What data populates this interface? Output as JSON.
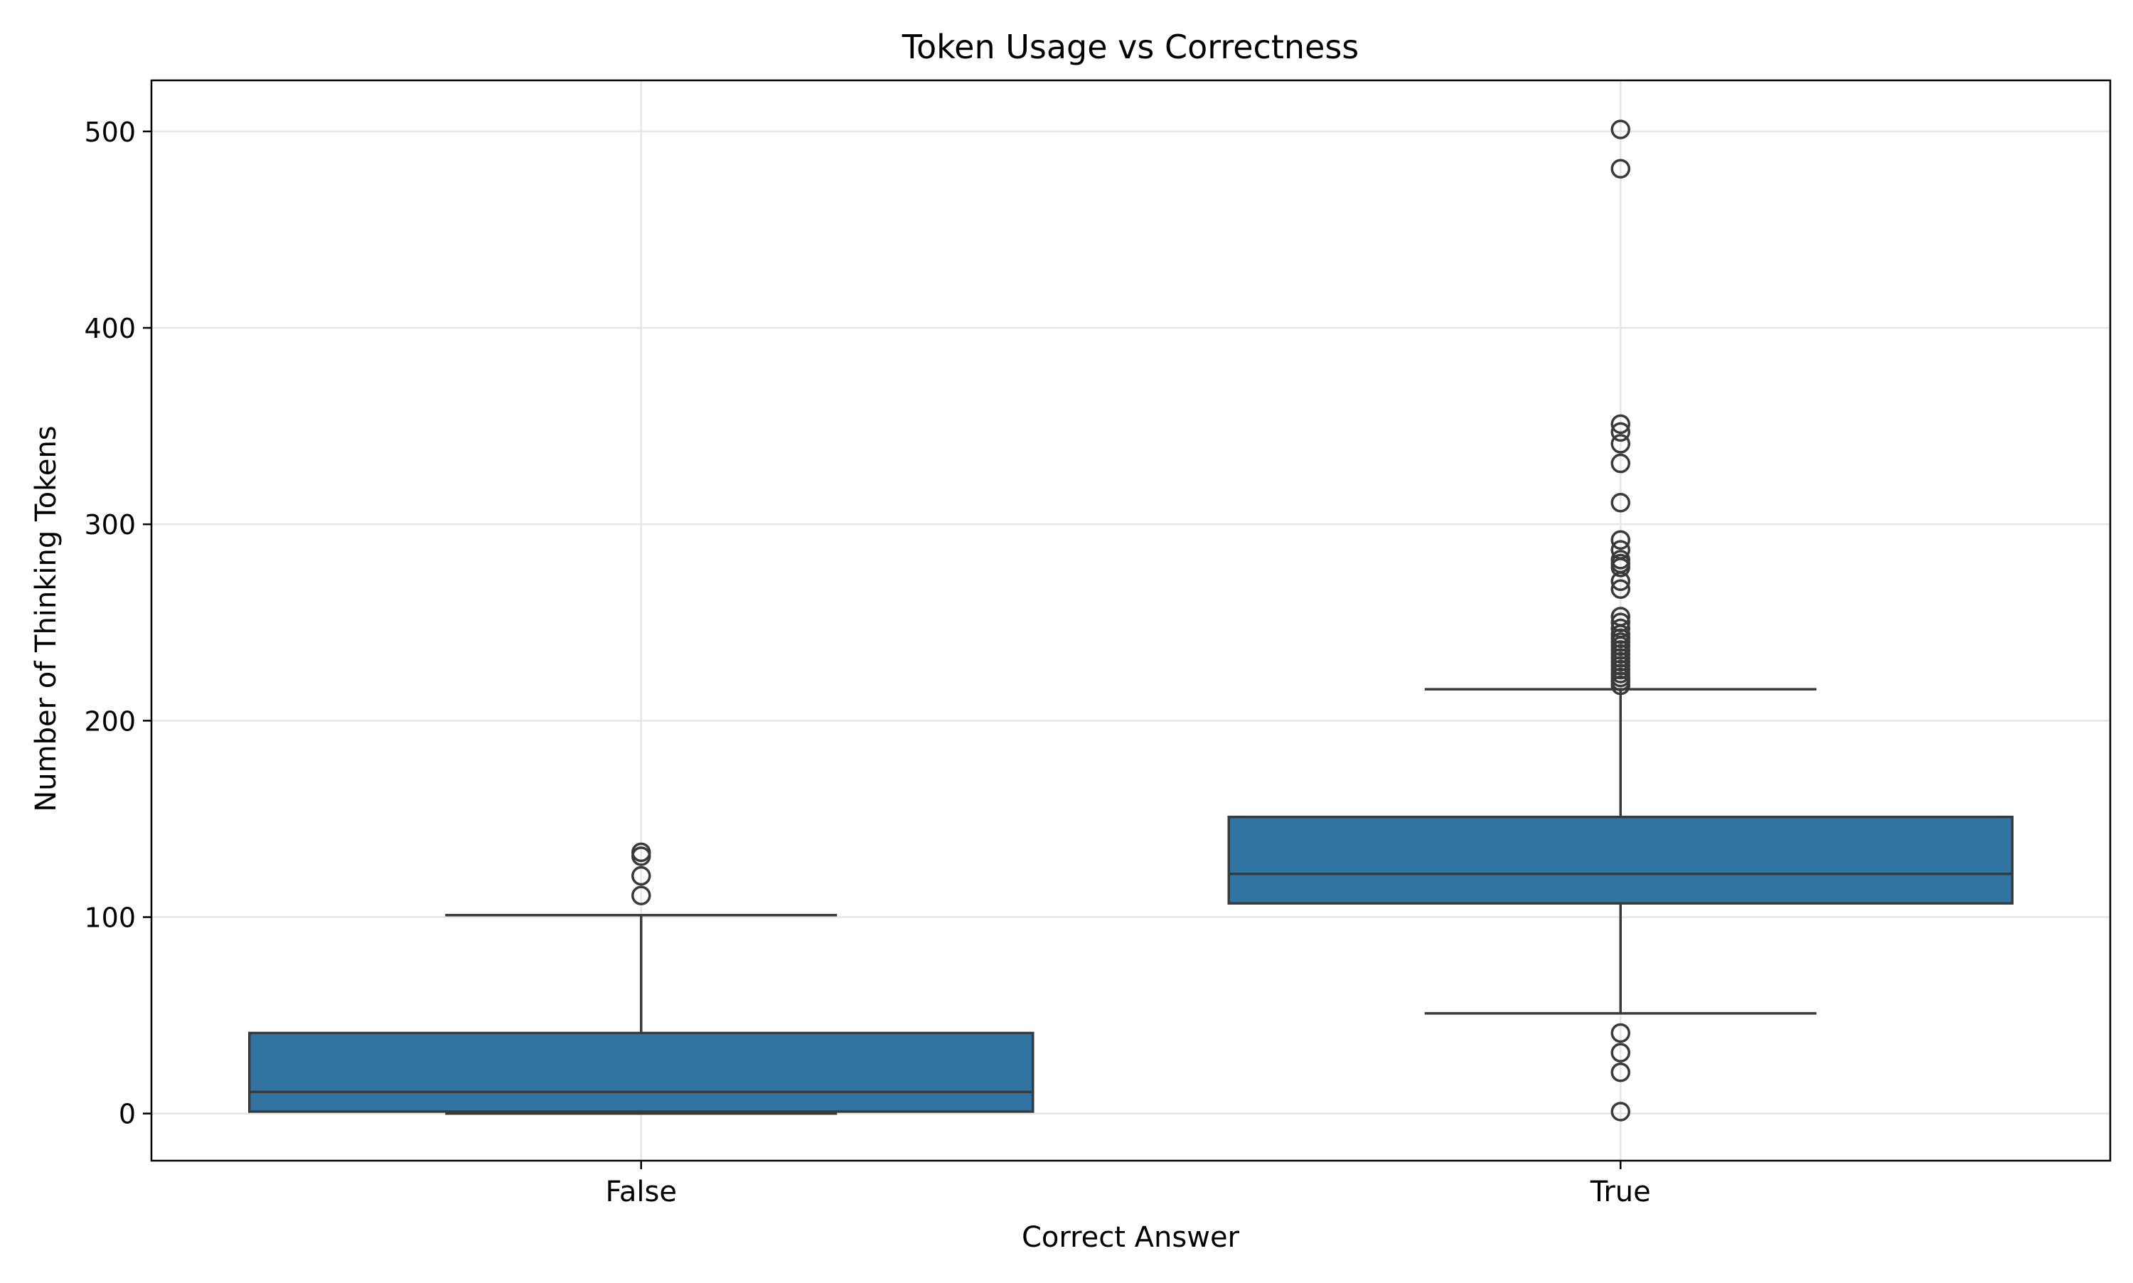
{
  "chart_data": {
    "type": "box",
    "title": "Token Usage vs Correctness",
    "xlabel": "Correct Answer",
    "ylabel": "Number of Thinking Tokens",
    "categories": [
      "False",
      "True"
    ],
    "ylim": [
      -24,
      526
    ],
    "yticks": [
      0,
      100,
      200,
      300,
      400,
      500
    ],
    "grid": true,
    "legend": "none",
    "colors": {
      "box_fill": "#3274a1",
      "box_edge": "#3a3a3a",
      "grid": "#e6e6e6",
      "axes": "#000000"
    },
    "boxes": [
      {
        "category": "False",
        "whisker_low": 0,
        "q1": 1,
        "median": 11,
        "q3": 41,
        "whisker_high": 101,
        "outliers": [
          111,
          121,
          131,
          133
        ]
      },
      {
        "category": "True",
        "whisker_low": 51,
        "q1": 107,
        "median": 122,
        "q3": 151,
        "whisker_high": 216,
        "outliers": [
          1,
          21,
          31,
          41,
          218,
          220,
          222,
          224,
          226,
          228,
          230,
          232,
          234,
          236,
          238,
          240,
          242,
          244,
          247,
          250,
          253,
          267,
          271,
          278,
          280,
          282,
          287,
          292,
          311,
          331,
          341,
          347,
          351,
          481,
          501
        ]
      }
    ]
  }
}
